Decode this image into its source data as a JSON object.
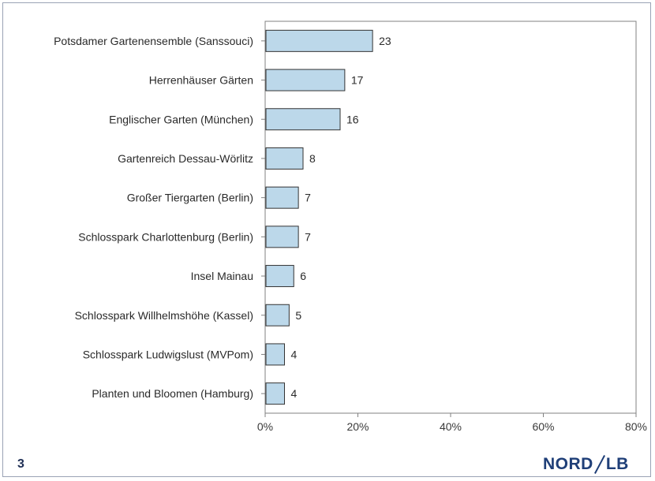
{
  "chart_data": {
    "type": "bar",
    "orientation": "horizontal",
    "categories": [
      "Potsdamer Gartenensemble (Sanssouci)",
      "Herrenhäuser Gärten",
      "Englischer Garten (München)",
      "Gartenreich Dessau-Wörlitz",
      "Großer Tiergarten (Berlin)",
      "Schlosspark Charlottenburg (Berlin)",
      "Insel Mainau",
      "Schlosspark Willhelmshöhe (Kassel)",
      "Schlosspark Ludwigslust (MVPom)",
      "Planten und Bloomen (Hamburg)"
    ],
    "values": [
      23,
      17,
      16,
      8,
      7,
      7,
      6,
      5,
      4,
      4
    ],
    "data_labels": [
      "23",
      "17",
      "16",
      "8",
      "7",
      "7",
      "6",
      "5",
      "4",
      "4"
    ],
    "xlim": [
      0,
      80
    ],
    "x_ticks": [
      0,
      20,
      40,
      60,
      80
    ],
    "x_tick_labels": [
      "0%",
      "20%",
      "40%",
      "60%",
      "80%"
    ],
    "title": "",
    "xlabel": "",
    "ylabel": "",
    "grid": false,
    "legend": "none",
    "bar_color": "#bcd8ea",
    "bar_edge_color": "#333333"
  },
  "footer": {
    "page_number": "3",
    "logo_left": "NORD",
    "logo_right": "LB"
  },
  "colors": {
    "logo": "#1f3f78",
    "frame": "#9aa3b5"
  }
}
